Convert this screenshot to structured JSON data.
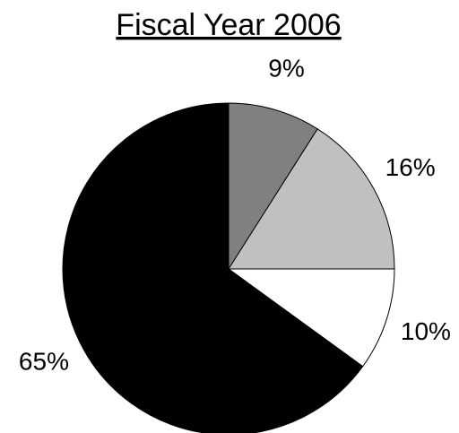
{
  "chart_data": {
    "type": "pie",
    "title": "Fiscal Year 2006",
    "values": [
      9,
      16,
      10,
      65
    ],
    "value_labels": [
      "9%",
      "16%",
      "10%",
      "65%"
    ],
    "colors": [
      "#808080",
      "#c0c0c0",
      "#ffffff",
      "#000000"
    ]
  }
}
